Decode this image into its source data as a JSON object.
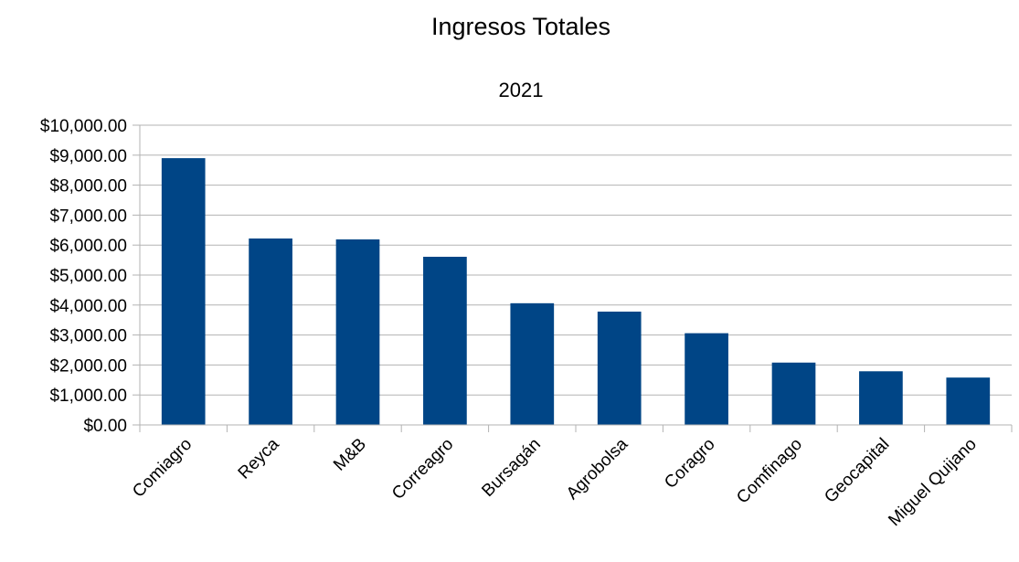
{
  "chart_data": {
    "type": "bar",
    "title": "Ingresos Totales",
    "subtitle": "2021",
    "xlabel": "",
    "ylabel": "",
    "categories": [
      "Comiagro",
      "Reyca",
      "M&B",
      "Correagro",
      "Bursagán",
      "Agrobolsa",
      "Coragro",
      "Comfinago",
      "Geocapital",
      "Miguel Quijano"
    ],
    "series": [
      {
        "values": [
          8900,
          6220,
          6190,
          5610,
          4060,
          3780,
          3060,
          2080,
          1790,
          1580
        ]
      }
    ],
    "ylim": [
      0,
      10000
    ],
    "yticks": [
      0,
      1000,
      2000,
      3000,
      4000,
      5000,
      6000,
      7000,
      8000,
      9000,
      10000
    ],
    "ytick_labels": [
      "$0.00",
      "$1,000.00",
      "$2,000.00",
      "$3,000.00",
      "$4,000.00",
      "$5,000.00",
      "$6,000.00",
      "$7,000.00",
      "$8,000.00",
      "$9,000.00",
      "$10,000.00"
    ],
    "grid": true,
    "legend": "none",
    "bar_color": "#004586",
    "grid_color": "#b3b3b3"
  }
}
